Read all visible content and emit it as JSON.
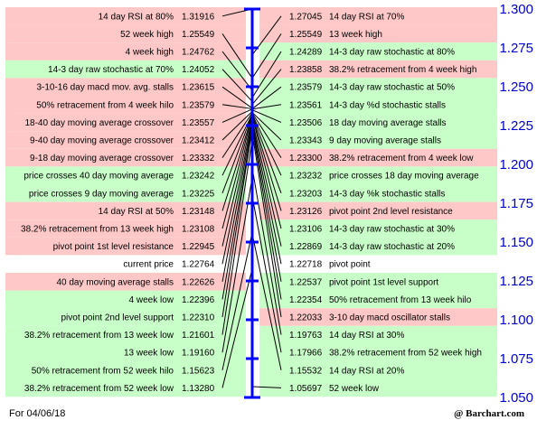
{
  "chart_data": {
    "type": "pivot-ladder",
    "ylim": [
      1.05,
      1.3
    ],
    "y_ticks": [
      "1.300",
      "1.275",
      "1.250",
      "1.225",
      "1.200",
      "1.175",
      "1.150",
      "1.125",
      "1.100",
      "1.075",
      "1.050"
    ],
    "colors": {
      "red": "#ffc8c8",
      "green": "#c8ffc8",
      "white": "#ffffff",
      "axis": "#0000ff"
    },
    "left": [
      {
        "label": "14 day RSI at 80%",
        "value": "1.31916",
        "color": "red"
      },
      {
        "label": "52 week high",
        "value": "1.25549",
        "color": "red"
      },
      {
        "label": "4 week high",
        "value": "1.24762",
        "color": "red"
      },
      {
        "label": "14-3 day raw stochastic at 70%",
        "value": "1.24052",
        "color": "green"
      },
      {
        "label": "3-10-16 day macd mov. avg. stalls",
        "value": "1.23615",
        "color": "red"
      },
      {
        "label": "50% retracement from 4 week hilo",
        "value": "1.23579",
        "color": "red"
      },
      {
        "label": "18-40 day moving average crossover",
        "value": "1.23557",
        "color": "red"
      },
      {
        "label": "9-40 day moving average crossover",
        "value": "1.23412",
        "color": "red"
      },
      {
        "label": "9-18 day moving average crossover",
        "value": "1.23332",
        "color": "red"
      },
      {
        "label": "price crosses 40 day moving average",
        "value": "1.23242",
        "color": "green"
      },
      {
        "label": "price crosses 9 day moving average",
        "value": "1.23225",
        "color": "green"
      },
      {
        "label": "14 day RSI at 50%",
        "value": "1.23148",
        "color": "red"
      },
      {
        "label": "38.2% retracement from 13 week high",
        "value": "1.23108",
        "color": "red"
      },
      {
        "label": "pivot point 1st level resistance",
        "value": "1.22945",
        "color": "red"
      },
      {
        "label": "current price",
        "value": "1.22764",
        "color": "white"
      },
      {
        "label": "40 day moving average stalls",
        "value": "1.22626",
        "color": "red"
      },
      {
        "label": "4 week low",
        "value": "1.22396",
        "color": "green"
      },
      {
        "label": "pivot point 2nd level support",
        "value": "1.22310",
        "color": "green"
      },
      {
        "label": "38.2% retracement from 13 week low",
        "value": "1.21601",
        "color": "green"
      },
      {
        "label": "13 week low",
        "value": "1.19160",
        "color": "green"
      },
      {
        "label": "50% retracement from 52 week hilo",
        "value": "1.15623",
        "color": "green"
      },
      {
        "label": "38.2% retracement from 52 week low",
        "value": "1.13280",
        "color": "green"
      }
    ],
    "right": [
      {
        "label": "14 day RSI at 70%",
        "value": "1.27045",
        "color": "red"
      },
      {
        "label": "13 week high",
        "value": "1.25549",
        "color": "red"
      },
      {
        "label": "14-3 day raw stochastic at 80%",
        "value": "1.24289",
        "color": "green"
      },
      {
        "label": "38.2% retracement from 4 week high",
        "value": "1.23858",
        "color": "red"
      },
      {
        "label": "14-3 day raw stochastic at 50%",
        "value": "1.23579",
        "color": "green"
      },
      {
        "label": "14-3 day %d stochastic stalls",
        "value": "1.23561",
        "color": "green"
      },
      {
        "label": "18 day moving average stalls",
        "value": "1.23506",
        "color": "green"
      },
      {
        "label": "9 day moving average stalls",
        "value": "1.23343",
        "color": "green"
      },
      {
        "label": "38.2% retracement from 4 week low",
        "value": "1.23300",
        "color": "red"
      },
      {
        "label": "price crosses 18 day moving average",
        "value": "1.23232",
        "color": "green"
      },
      {
        "label": "14-3 day %k stochastic stalls",
        "value": "1.23203",
        "color": "green"
      },
      {
        "label": "pivot point 2nd level resistance",
        "value": "1.23126",
        "color": "red"
      },
      {
        "label": "14-3 day raw stochastic at 30%",
        "value": "1.23106",
        "color": "green"
      },
      {
        "label": "14-3 day raw stochastic at 20%",
        "value": "1.22869",
        "color": "green"
      },
      {
        "label": "pivot point",
        "value": "1.22718",
        "color": "white"
      },
      {
        "label": "pivot point 1st level support",
        "value": "1.22537",
        "color": "green"
      },
      {
        "label": "50% retracement from 13 week hilo",
        "value": "1.22354",
        "color": "green"
      },
      {
        "label": "3-10 day macd oscillator stalls",
        "value": "1.22033",
        "color": "red"
      },
      {
        "label": "14 day RSI at 30%",
        "value": "1.19763",
        "color": "green"
      },
      {
        "label": "38.2% retracement from 52 week high",
        "value": "1.17966",
        "color": "green"
      },
      {
        "label": "14 day RSI at 20%",
        "value": "1.15532",
        "color": "green"
      },
      {
        "label": "52 week low",
        "value": "1.05697",
        "color": "green"
      }
    ]
  },
  "footer": {
    "date": "For 04/06/18",
    "source": "@ Barchart.com"
  }
}
